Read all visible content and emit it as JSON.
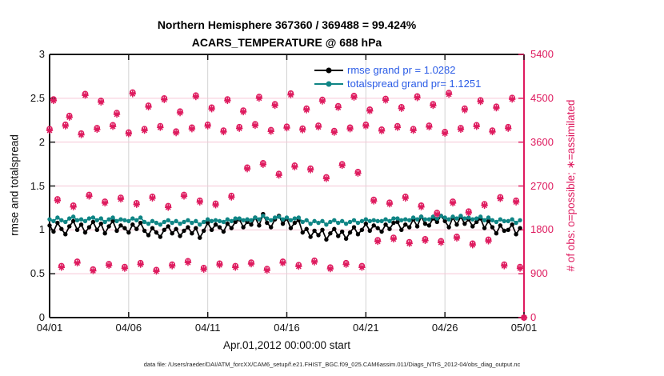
{
  "title": {
    "line1": "Northern Hemisphere 367360 / 369488 = 99.424%",
    "line2": "ACARS_TEMPERATURE @ 688 hPa"
  },
  "legend": [
    {
      "label": "rmse grand pr = 1.0282",
      "series": "rmse"
    },
    {
      "label": "totalspread grand pr= 1.1251",
      "series": "totalspread"
    }
  ],
  "axes": {
    "x": {
      "ticks": [
        "04/01",
        "04/06",
        "04/11",
        "04/16",
        "04/21",
        "04/26",
        "05/01"
      ],
      "label": "Apr.01,2012 00:00:00 start"
    },
    "y_left": {
      "ticks": [
        "0",
        "0.5",
        "1",
        "1.5",
        "2",
        "2.5",
        "3"
      ],
      "label": "rmse and totalspread"
    },
    "y_right": {
      "ticks": [
        "0",
        "900",
        "1800",
        "2700",
        "3600",
        "4500",
        "5400"
      ],
      "label": "# of obs: o=possible; ∗=assimilated"
    }
  },
  "footer": "data file: /Users/raeder/DAI/ATM_forcXX/CAM6_setup/f.e21.FHIST_BGC.f09_025.CAM6assim.011/Diags_NTrS_2012-04/obs_diag_output.nc",
  "colors": {
    "rmse_black": "#000000",
    "totalspread_teal": "#0F8585",
    "obs_pink": "#DE1A5E",
    "legend_blue": "#2B5CE6",
    "grid_vertical": "#d2d2d2",
    "grid_horizontal": "#f6c6d6",
    "axis_black": "#1a1a1a"
  },
  "chart_data": {
    "type": "line",
    "title": [
      "Northern Hemisphere 367360 / 369488 = 99.424%",
      "ACARS_TEMPERATURE @ 688 hPa"
    ],
    "xlabel": "Apr.01,2012 00:00:00 start",
    "ylabel_left": "rmse and totalspread",
    "ylabel_right": "# of obs: o=possible; ∗=assimilated",
    "xlim_days": [
      0,
      30
    ],
    "x_tick_days": [
      0,
      5,
      10,
      15,
      20,
      25,
      30
    ],
    "x_tick_labels": [
      "04/01",
      "04/06",
      "04/11",
      "04/16",
      "04/21",
      "04/26",
      "05/01"
    ],
    "ylim_left": [
      0,
      3
    ],
    "yticks_left": [
      0,
      0.5,
      1,
      1.5,
      2,
      2.5,
      3
    ],
    "ylim_right": [
      0,
      5400
    ],
    "yticks_right": [
      0,
      900,
      1800,
      2700,
      3600,
      4500,
      5400
    ],
    "grid": true,
    "legend_position": "top-center",
    "obs_possible_total": 369488,
    "obs_assimilated_total": 367360,
    "obs_assimilated_percent": 99.424,
    "series": [
      {
        "name": "rmse",
        "grand_mean": 1.0282,
        "axis": "left",
        "marker": "filled-circle",
        "t0": 0,
        "dt": 0.25,
        "values": [
          1.05,
          0.98,
          1.08,
          1.01,
          0.95,
          1.04,
          1.1,
          1.0,
          1.06,
          0.97,
          1.03,
          1.09,
          1.0,
          1.07,
          0.96,
          1.04,
          1.1,
          0.99,
          1.05,
          1.02,
          0.97,
          1.06,
          1.01,
          1.08,
          0.99,
          0.94,
          1.02,
          0.97,
          0.92,
          1.0,
          1.04,
          0.96,
          1.01,
          0.93,
          0.99,
          1.03,
          0.96,
          1.02,
          0.91,
          0.99,
          1.08,
          1.0,
          1.06,
          1.03,
          0.98,
          1.07,
          1.02,
          1.09,
          1.12,
          1.03,
          1.09,
          1.06,
          1.14,
          1.05,
          1.18,
          1.08,
          1.03,
          1.12,
          1.16,
          1.07,
          1.13,
          1.02,
          1.08,
          1.11,
          0.97,
          1.01,
          0.92,
          0.99,
          0.94,
          1.0,
          0.89,
          0.96,
          1.01,
          0.93,
          0.98,
          0.9,
          0.97,
          1.03,
          0.95,
          1.0,
          1.07,
          0.99,
          1.05,
          1.02,
          0.98,
          1.06,
          1.01,
          1.08,
          1.09,
          1.0,
          1.06,
          1.03,
          1.12,
          1.04,
          1.15,
          1.07,
          1.05,
          1.13,
          1.09,
          1.16,
          1.1,
          1.03,
          1.14,
          1.06,
          1.15,
          1.07,
          1.12,
          1.04,
          1.09,
          1.13,
          1.02,
          1.1,
          1.03,
          0.96,
          1.05,
          0.99,
          1.0,
          1.06,
          0.95,
          1.02
        ]
      },
      {
        "name": "totalspread",
        "grand_mean": 1.1251,
        "axis": "left",
        "marker": "filled-circle",
        "t0": 0,
        "dt": 0.25,
        "values": [
          1.12,
          1.1,
          1.14,
          1.11,
          1.09,
          1.13,
          1.15,
          1.11,
          1.12,
          1.1,
          1.13,
          1.14,
          1.11,
          1.13,
          1.09,
          1.12,
          1.14,
          1.1,
          1.12,
          1.11,
          1.1,
          1.13,
          1.11,
          1.14,
          1.09,
          1.07,
          1.1,
          1.08,
          1.06,
          1.09,
          1.11,
          1.08,
          1.1,
          1.07,
          1.09,
          1.11,
          1.08,
          1.1,
          1.06,
          1.09,
          1.12,
          1.1,
          1.11,
          1.1,
          1.09,
          1.12,
          1.1,
          1.13,
          1.13,
          1.11,
          1.12,
          1.11,
          1.14,
          1.12,
          1.16,
          1.13,
          1.11,
          1.14,
          1.15,
          1.12,
          1.14,
          1.11,
          1.13,
          1.14,
          1.09,
          1.11,
          1.07,
          1.1,
          1.08,
          1.1,
          1.06,
          1.09,
          1.11,
          1.08,
          1.1,
          1.07,
          1.09,
          1.11,
          1.08,
          1.1,
          1.12,
          1.1,
          1.11,
          1.1,
          1.1,
          1.12,
          1.1,
          1.13,
          1.13,
          1.11,
          1.12,
          1.11,
          1.14,
          1.12,
          1.15,
          1.12,
          1.12,
          1.15,
          1.13,
          1.16,
          1.14,
          1.12,
          1.15,
          1.13,
          1.16,
          1.13,
          1.14,
          1.12,
          1.13,
          1.15,
          1.11,
          1.14,
          1.11,
          1.09,
          1.12,
          1.1,
          1.1,
          1.12,
          1.08,
          1.11
        ]
      },
      {
        "name": "possible",
        "axis": "right",
        "marker": "open-circle",
        "t0": 0,
        "dt": 0.25,
        "values": [
          3870,
          4480,
          2430,
          1060,
          3960,
          4140,
          2300,
          1150,
          3780,
          4590,
          2520,
          990,
          3890,
          4450,
          2380,
          1100,
          3950,
          4200,
          2460,
          1040,
          3800,
          4620,
          2350,
          1120,
          3870,
          4350,
          2480,
          980,
          3930,
          4500,
          2290,
          1090,
          3820,
          4230,
          2520,
          1160,
          3900,
          4560,
          2400,
          1020,
          3960,
          4310,
          2340,
          1110,
          3840,
          4480,
          2500,
          1060,
          3910,
          4250,
          3080,
          1130,
          3970,
          4530,
          3170,
          1000,
          3850,
          4380,
          2950,
          1150,
          3920,
          4600,
          3120,
          1080,
          3880,
          4290,
          3060,
          1170,
          3940,
          4470,
          2880,
          1030,
          3830,
          4340,
          3150,
          1120,
          3900,
          4550,
          2990,
          1060,
          3960,
          4270,
          2420,
          1590,
          3860,
          4490,
          2360,
          1640,
          3930,
          4320,
          2480,
          1550,
          3870,
          4540,
          2300,
          1610,
          3940,
          4380,
          2150,
          1570,
          3810,
          4610,
          2380,
          1660,
          3890,
          4290,
          2180,
          1520,
          3950,
          4460,
          2330,
          1600,
          3840,
          4330,
          2470,
          1090,
          3910,
          4510,
          2400,
          1040,
          0
        ]
      },
      {
        "name": "assimilated",
        "axis": "right",
        "marker": "asterisk",
        "t0": 0,
        "dt": 0.25,
        "values": [
          3840,
          4450,
          2400,
          1030,
          3930,
          4110,
          2270,
          1120,
          3750,
          4560,
          2490,
          960,
          3860,
          4420,
          2350,
          1070,
          3920,
          4170,
          2430,
          1010,
          3770,
          4590,
          2320,
          1090,
          3840,
          4320,
          2450,
          950,
          3900,
          4470,
          2260,
          1060,
          3790,
          4200,
          2490,
          1130,
          3870,
          4530,
          2370,
          990,
          3930,
          4280,
          2310,
          1080,
          3810,
          4450,
          2470,
          1030,
          3880,
          4220,
          3050,
          1100,
          3940,
          4500,
          3140,
          970,
          3820,
          4350,
          2920,
          1120,
          3890,
          4570,
          3090,
          1050,
          3850,
          4260,
          3030,
          1140,
          3910,
          4440,
          2850,
          1000,
          3800,
          4310,
          3120,
          1090,
          3870,
          4520,
          2960,
          1030,
          3930,
          4240,
          2390,
          1560,
          3830,
          4460,
          2330,
          1610,
          3900,
          4290,
          2450,
          1520,
          3840,
          4510,
          2270,
          1580,
          3910,
          4350,
          2120,
          1540,
          3780,
          4580,
          2350,
          1630,
          3860,
          4260,
          2150,
          1490,
          3920,
          4430,
          2300,
          1570,
          3810,
          4300,
          2440,
          1060,
          3880,
          4480,
          2370,
          1010,
          0
        ]
      }
    ]
  }
}
